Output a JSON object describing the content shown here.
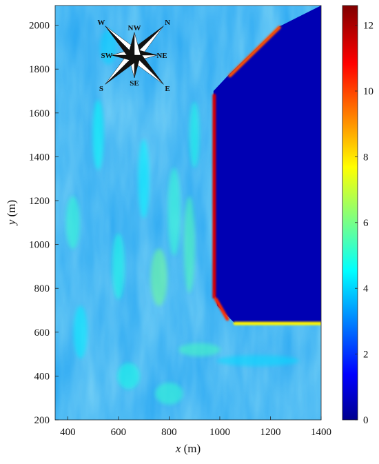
{
  "chart_data": {
    "type": "heatmap",
    "title": "",
    "xlabel_var": "x",
    "xlabel_unit": " (m)",
    "ylabel_var": "y",
    "ylabel_unit": " (m)",
    "xlim": [
      350,
      1400
    ],
    "ylim": [
      200,
      2090
    ],
    "xticks": [
      400,
      600,
      800,
      1000,
      1200,
      1400
    ],
    "yticks": [
      200,
      400,
      600,
      800,
      1000,
      1200,
      1400,
      1600,
      1800,
      2000
    ],
    "colorbar": {
      "min": 0,
      "max": 12.6,
      "ticks": [
        0,
        2,
        4,
        6,
        8,
        10,
        12
      ],
      "colormap": "jet"
    },
    "land_polygon": [
      [
        1245,
        2000
      ],
      [
        1400,
        2090
      ],
      [
        1400,
        640
      ],
      [
        1060,
        640
      ],
      [
        990,
        720
      ],
      [
        975,
        800
      ],
      [
        975,
        1700
      ],
      [
        1040,
        1780
      ],
      [
        1235,
        1995
      ]
    ],
    "high_value_edges": [
      {
        "from": [
          978,
          1680
        ],
        "to": [
          978,
          760
        ],
        "value": 11.5
      },
      {
        "from": [
          985,
          750
        ],
        "to": [
          1030,
          660
        ],
        "value": 10.5
      },
      {
        "from": [
          1040,
          1770
        ],
        "to": [
          1235,
          1990
        ],
        "value": 10
      },
      {
        "from": [
          1060,
          640
        ],
        "to": [
          1400,
          640
        ],
        "value": 8
      }
    ],
    "compass": {
      "labels": [
        "N",
        "NE",
        "E",
        "SE",
        "S",
        "SW",
        "W",
        "NW"
      ]
    }
  }
}
